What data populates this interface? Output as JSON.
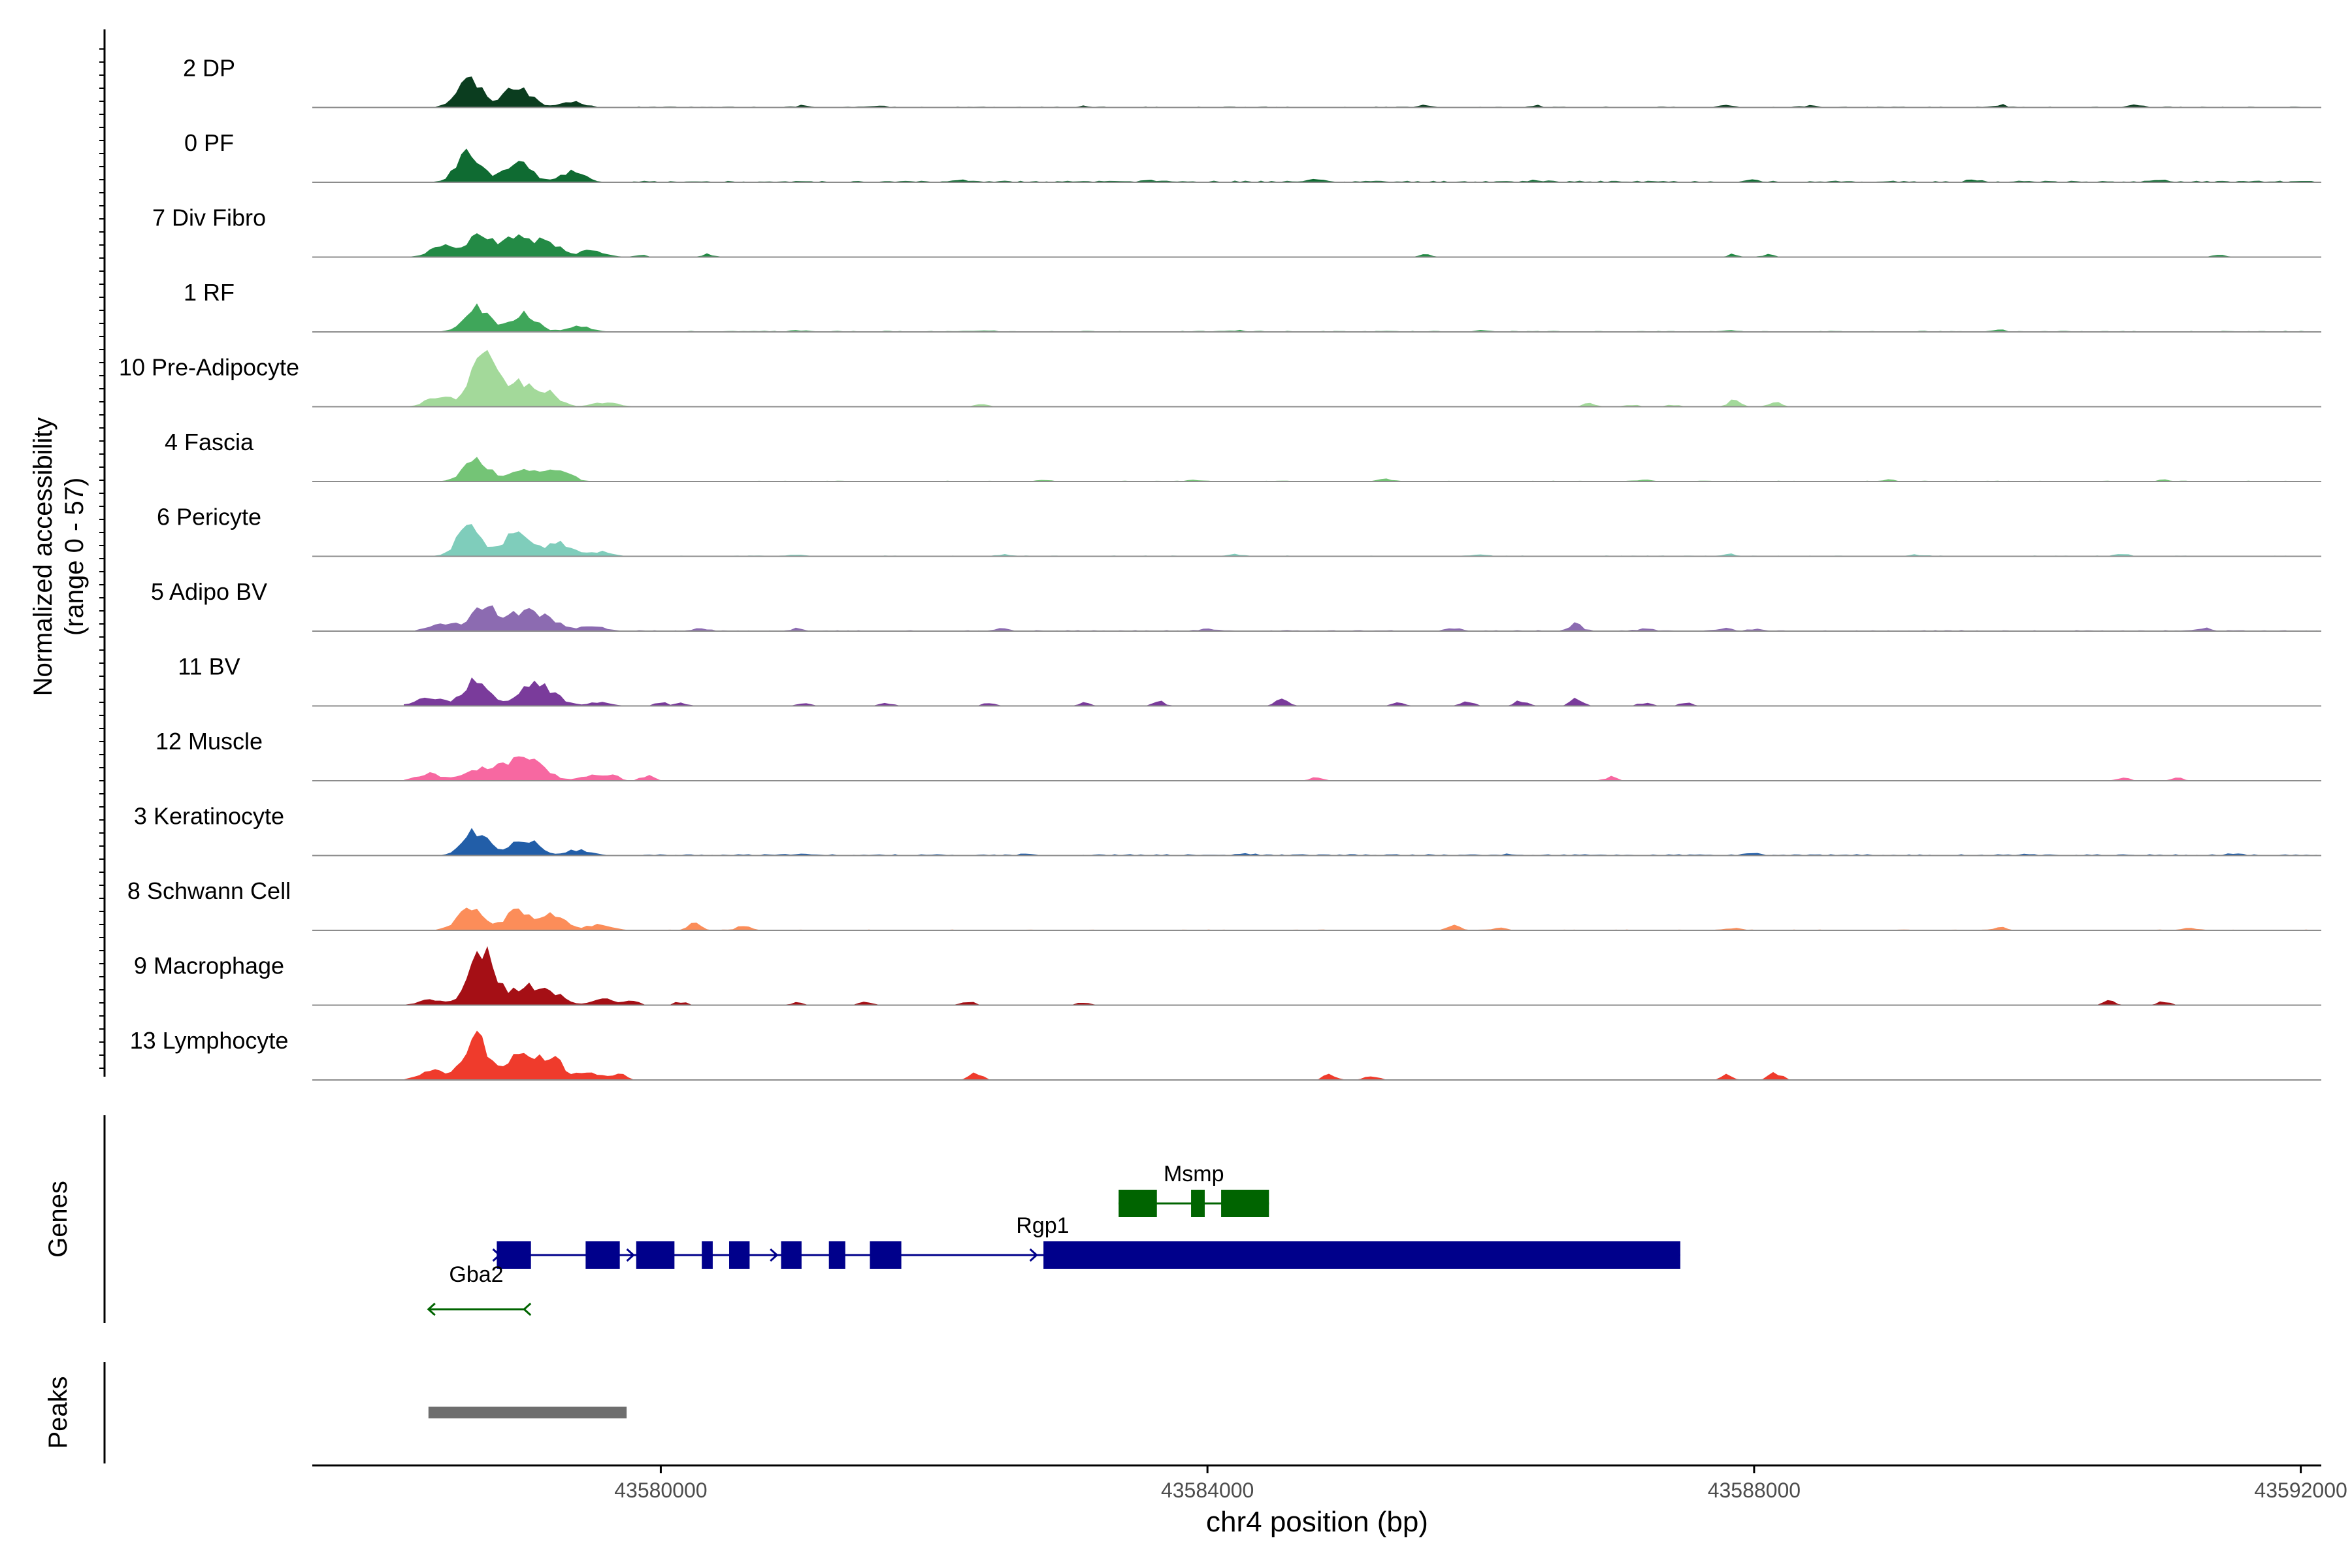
{
  "chart_data": {
    "type": "area",
    "chromosome": "chr4",
    "x_axis": {
      "label": "chr4 position (bp)",
      "range": [
        43577450,
        43592150
      ],
      "ticks": [
        43580000,
        43584000,
        43588000,
        43592000
      ],
      "tick_labels": [
        "43580000",
        "43584000",
        "43588000",
        "43592000"
      ]
    },
    "coverage_axis": {
      "label_line1": "Normalized accessibility",
      "label_line2": "(range 0 - 57)",
      "range": [
        0,
        57
      ]
    },
    "tracks": [
      {
        "name": "2 DP",
        "color": "#0b3d1f",
        "peaks": [
          [
            43578600,
            24
          ],
          [
            43578950,
            20
          ],
          [
            43579350,
            5
          ]
        ],
        "flecks": [
          [
            43581050,
            1.3
          ],
          [
            43581600,
            1.5
          ],
          [
            43583100,
            1.2
          ],
          [
            43585600,
            1.4
          ],
          [
            43586400,
            1.5
          ],
          [
            43587800,
            2.2
          ],
          [
            43588400,
            1.6
          ],
          [
            43589800,
            2.0
          ],
          [
            43590800,
            1.8
          ]
        ],
        "base": 0.8
      },
      {
        "name": "0 PF",
        "color": "#0f6b32",
        "peaks": [
          [
            43578600,
            25
          ],
          [
            43578950,
            19
          ],
          [
            43579350,
            9
          ]
        ],
        "flecks": [
          [
            43582200,
            1.2
          ],
          [
            43583600,
            1.6
          ],
          [
            43584800,
            1.8
          ],
          [
            43586400,
            1.4
          ],
          [
            43588000,
            1.5
          ],
          [
            43589600,
            1.7
          ],
          [
            43591000,
            1.5
          ]
        ],
        "base": 1.4
      },
      {
        "name": "7 Div Fibro",
        "color": "#238a45",
        "peaks": [
          [
            43578400,
            9
          ],
          [
            43578650,
            16
          ],
          [
            43578900,
            18
          ],
          [
            43579150,
            17
          ],
          [
            43579500,
            6
          ]
        ],
        "flecks": [
          [
            43579850,
            2.0
          ],
          [
            43580350,
            2.4
          ],
          [
            43585600,
            2.0
          ],
          [
            43587850,
            2.4
          ],
          [
            43588100,
            2.0
          ],
          [
            43591400,
            2.2
          ]
        ],
        "base": 0.2
      },
      {
        "name": "1 RF",
        "color": "#3fa65a",
        "peaks": [
          [
            43578650,
            21
          ],
          [
            43579000,
            15
          ],
          [
            43579400,
            5
          ]
        ],
        "flecks": [
          [
            43581000,
            1.3
          ],
          [
            43582400,
            1.2
          ],
          [
            43584200,
            1.3
          ],
          [
            43586000,
            1.2
          ],
          [
            43587800,
            1.2
          ],
          [
            43589800,
            1.3
          ]
        ],
        "base": 0.9
      },
      {
        "name": "10 Pre-Adipocyte",
        "color": "#a3d99a",
        "peaks": [
          [
            43578380,
            9
          ],
          [
            43578700,
            42
          ],
          [
            43578950,
            20
          ],
          [
            43579150,
            13
          ],
          [
            43579600,
            4
          ]
        ],
        "flecks": [
          [
            43582350,
            2.4
          ],
          [
            43586800,
            3.0
          ],
          [
            43587100,
            2.0
          ],
          [
            43587400,
            2.0
          ],
          [
            43587850,
            6.0
          ],
          [
            43588150,
            4.0
          ]
        ],
        "base": 0.0
      },
      {
        "name": "4 Fascia",
        "color": "#74c476",
        "peaks": [
          [
            43578650,
            20
          ],
          [
            43579000,
            12
          ],
          [
            43579250,
            10
          ]
        ],
        "flecks": [
          [
            43582800,
            1.2
          ],
          [
            43583900,
            1.2
          ],
          [
            43585300,
            1.8
          ],
          [
            43587200,
            1.5
          ],
          [
            43589000,
            1.4
          ],
          [
            43591000,
            1.4
          ]
        ],
        "base": 0.7
      },
      {
        "name": "6 Pericyte",
        "color": "#7fcdbb",
        "peaks": [
          [
            43578600,
            24
          ],
          [
            43578950,
            21
          ],
          [
            43579250,
            13
          ],
          [
            43579550,
            4
          ]
        ],
        "flecks": [
          [
            43581000,
            1.3
          ],
          [
            43582500,
            1.4
          ],
          [
            43584200,
            1.5
          ],
          [
            43586000,
            1.4
          ],
          [
            43587800,
            2.0
          ],
          [
            43589200,
            1.3
          ],
          [
            43590700,
            2.0
          ]
        ],
        "base": 0.7
      },
      {
        "name": "5 Adipo BV",
        "color": "#8c6bb1",
        "peaks": [
          [
            43578400,
            7
          ],
          [
            43578700,
            24
          ],
          [
            43578950,
            16
          ],
          [
            43579150,
            14
          ],
          [
            43579500,
            5
          ]
        ],
        "flecks": [
          [
            43580300,
            2.5
          ],
          [
            43581000,
            2.0
          ],
          [
            43582500,
            1.8
          ],
          [
            43584000,
            2.0
          ],
          [
            43585800,
            2.5
          ],
          [
            43586700,
            5.5
          ],
          [
            43587200,
            2.5
          ],
          [
            43587800,
            2.5
          ],
          [
            43588000,
            2.0
          ],
          [
            43591300,
            2.0
          ]
        ],
        "base": 0.9
      },
      {
        "name": "11 BV",
        "color": "#7a3b9b",
        "peaks": [
          [
            43578300,
            8
          ],
          [
            43578650,
            22
          ],
          [
            43579050,
            17
          ],
          [
            43579200,
            8
          ],
          [
            43579550,
            3
          ]
        ],
        "flecks": [
          [
            43580000,
            3.0
          ],
          [
            43580150,
            2.5
          ],
          [
            43581050,
            3.5
          ],
          [
            43581650,
            3.0
          ],
          [
            43582400,
            2.5
          ],
          [
            43583100,
            2.5
          ],
          [
            43583650,
            3.5
          ],
          [
            43584550,
            6.5
          ],
          [
            43585400,
            3.0
          ],
          [
            43585900,
            4.5
          ],
          [
            43586300,
            5.0
          ],
          [
            43586700,
            6.0
          ],
          [
            43587200,
            3.0
          ],
          [
            43587500,
            2.5
          ]
        ],
        "base": 0.0
      },
      {
        "name": "12 Muscle",
        "color": "#f768a1",
        "peaks": [
          [
            43578300,
            6
          ],
          [
            43578650,
            10
          ],
          [
            43578900,
            17
          ],
          [
            43579100,
            14
          ],
          [
            43579500,
            5
          ]
        ],
        "flecks": [
          [
            43579650,
            4.5
          ],
          [
            43579900,
            4.5
          ],
          [
            43584800,
            3.5
          ],
          [
            43586950,
            3.5
          ],
          [
            43590700,
            2.5
          ],
          [
            43591100,
            2.5
          ]
        ],
        "base": 0.0
      },
      {
        "name": "3 Keratinocyte",
        "color": "#225ea8",
        "peaks": [
          [
            43578650,
            21
          ],
          [
            43579000,
            15
          ],
          [
            43579400,
            5
          ]
        ],
        "flecks": [
          [
            43581000,
            1.2
          ],
          [
            43582700,
            1.3
          ],
          [
            43584300,
            1.2
          ],
          [
            43586200,
            1.3
          ],
          [
            43588000,
            1.4
          ],
          [
            43590000,
            1.2
          ],
          [
            43591500,
            1.2
          ]
        ],
        "base": 1.2
      },
      {
        "name": "8 Schwann Cell",
        "color": "#fc8d59",
        "peaks": [
          [
            43578600,
            18
          ],
          [
            43578950,
            17
          ],
          [
            43579200,
            14
          ],
          [
            43579550,
            5
          ]
        ],
        "flecks": [
          [
            43580250,
            5.5
          ],
          [
            43580600,
            4.0
          ],
          [
            43585800,
            3.5
          ],
          [
            43586150,
            2.0
          ],
          [
            43587850,
            2.0
          ],
          [
            43589800,
            2.0
          ],
          [
            43591200,
            2.0
          ]
        ],
        "base": 0.7
      },
      {
        "name": "9 Macrophage",
        "color": "#a50f15",
        "peaks": [
          [
            43578330,
            5
          ],
          [
            43578700,
            45
          ],
          [
            43579000,
            15
          ],
          [
            43579200,
            11
          ],
          [
            43579600,
            5
          ]
        ],
        "flecks": [
          [
            43579800,
            3.0
          ],
          [
            43580150,
            3.0
          ],
          [
            43581000,
            2.5
          ],
          [
            43581500,
            2.8
          ],
          [
            43582250,
            3.5
          ],
          [
            43583100,
            3.0
          ],
          [
            43590600,
            3.5
          ],
          [
            43591000,
            3.5
          ]
        ],
        "base": 0.0
      },
      {
        "name": "13 Lymphocyte",
        "color": "#ef3b2c",
        "peaks": [
          [
            43578330,
            8
          ],
          [
            43578650,
            38
          ],
          [
            43578980,
            22
          ],
          [
            43579200,
            18
          ],
          [
            43579500,
            6
          ]
        ],
        "flecks": [
          [
            43579700,
            5.0
          ],
          [
            43582300,
            7.5
          ],
          [
            43584900,
            5.0
          ],
          [
            43585200,
            4.5
          ],
          [
            43587800,
            4.0
          ],
          [
            43588150,
            7.5
          ]
        ],
        "base": 0.0
      }
    ],
    "genes": [
      {
        "name": "Rgp1",
        "strand": "+",
        "color": "#00008b",
        "start": 43578800,
        "end": 43587460,
        "exons": [
          [
            43578800,
            43579050
          ],
          [
            43579450,
            43579700
          ],
          [
            43579820,
            43580100
          ],
          [
            43580300,
            43580380
          ],
          [
            43580500,
            43580650
          ],
          [
            43580880,
            43581030
          ],
          [
            43581230,
            43581350
          ],
          [
            43581530,
            43581760
          ],
          [
            43582800,
            43587460
          ]
        ]
      },
      {
        "name": "Msmp",
        "strand": "+",
        "color": "#006400",
        "start": 43583350,
        "end": 43584450,
        "exons": [
          [
            43583350,
            43583630
          ],
          [
            43583880,
            43583980
          ],
          [
            43584100,
            43584450
          ]
        ]
      },
      {
        "name": "Gba2",
        "strand": "-",
        "color": "#006400",
        "start": 43578300,
        "end": 43579000,
        "exons": []
      }
    ],
    "peaks_track": [
      [
        43578300,
        43579750
      ]
    ],
    "row_labels": {
      "genes": "Genes",
      "peaks": "Peaks"
    }
  }
}
